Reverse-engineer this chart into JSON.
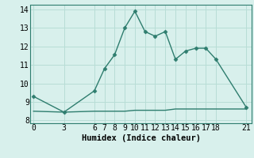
{
  "line1_x": [
    0,
    3,
    6,
    7,
    8,
    9,
    10,
    11,
    12,
    13,
    14,
    15,
    16,
    17,
    18,
    21
  ],
  "line1_y": [
    9.3,
    8.45,
    9.6,
    10.8,
    11.55,
    13.0,
    13.9,
    12.8,
    12.55,
    12.8,
    11.3,
    11.75,
    11.9,
    11.9,
    11.3,
    8.7
  ],
  "line2_x": [
    0,
    3,
    6,
    7,
    8,
    9,
    10,
    11,
    12,
    13,
    14,
    15,
    16,
    17,
    18,
    21
  ],
  "line2_y": [
    8.5,
    8.45,
    8.5,
    8.5,
    8.5,
    8.5,
    8.55,
    8.55,
    8.55,
    8.55,
    8.62,
    8.62,
    8.62,
    8.62,
    8.62,
    8.62
  ],
  "line_color": "#2e7d6e",
  "bg_color": "#d8f0ec",
  "grid_color": "#b8ddd6",
  "xlabel": "Humidex (Indice chaleur)",
  "xticks": [
    0,
    3,
    6,
    7,
    8,
    9,
    10,
    11,
    12,
    13,
    14,
    15,
    16,
    17,
    18,
    21
  ],
  "yticks": [
    8,
    9,
    10,
    11,
    12,
    13,
    14
  ],
  "xlim": [
    -0.3,
    21.5
  ],
  "ylim": [
    7.85,
    14.25
  ],
  "xlabel_fontsize": 7.5,
  "tick_fontsize": 7,
  "linewidth": 1.0,
  "markersize": 2.5
}
